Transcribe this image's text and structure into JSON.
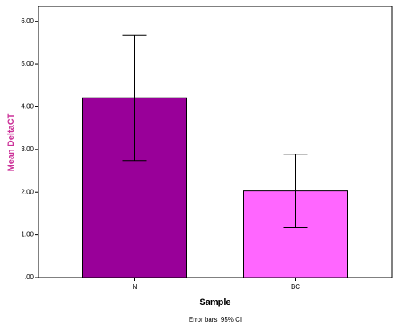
{
  "chart_data": {
    "type": "bar",
    "categories": [
      "N",
      "BC"
    ],
    "series": [
      {
        "name": "Mean DeltaCT",
        "values": [
          4.21,
          2.03
        ],
        "ci_lower": [
          2.74,
          1.17
        ],
        "ci_upper": [
          5.67,
          2.89
        ]
      }
    ],
    "colors": [
      "#990099",
      "#ff66ff"
    ],
    "x_label": "Sample",
    "y_label": "Mean DeltaCT",
    "footnote": "Error bars: 95% CI",
    "ylim": [
      0,
      6.35
    ],
    "yticks": [
      {
        "value": 0,
        "label": ".00"
      },
      {
        "value": 1,
        "label": "1.00"
      },
      {
        "value": 2,
        "label": "2.00"
      },
      {
        "value": 3,
        "label": "3.00"
      },
      {
        "value": 4,
        "label": "4.00"
      },
      {
        "value": 5,
        "label": "5.00"
      },
      {
        "value": 6,
        "label": "6.00"
      }
    ]
  }
}
